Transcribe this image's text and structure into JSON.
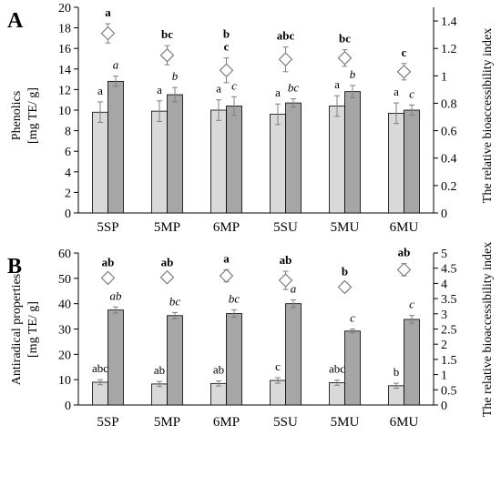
{
  "colors": {
    "light_bar": "#d9d9d9",
    "dark_bar": "#a6a6a6",
    "stroke": "#000000",
    "marker_stroke": "#7f7f7f",
    "error_bar": "#7f7f7f"
  },
  "chart_data": [
    {
      "type": "bar",
      "panel_label": "A",
      "categories": [
        "5SP",
        "5MP",
        "6MP",
        "5SU",
        "5MU",
        "6MU"
      ],
      "ylabel": [
        "Phenolics",
        "[mg TE/ g]"
      ],
      "ylim": [
        0,
        20
      ],
      "yticks": [
        0,
        2,
        4,
        6,
        8,
        10,
        12,
        14,
        16,
        18,
        20
      ],
      "y2label": "The relative bioaccessibility index",
      "y2lim": [
        0,
        1.5
      ],
      "y2ticks": [
        "0",
        "0.2",
        "0.4",
        "0.6",
        "0.8",
        "1",
        "1.2",
        "1.4"
      ],
      "series": [
        {
          "style": "light-bar",
          "values": [
            9.8,
            9.9,
            10.0,
            9.6,
            10.4,
            9.7
          ],
          "errors": [
            1.0,
            1.0,
            1.0,
            1.0,
            1.0,
            1.0
          ],
          "labels": [
            "a",
            "a",
            "a",
            "a",
            "a",
            "a"
          ],
          "label_style": "normal"
        },
        {
          "style": "dark-bar",
          "values": [
            12.8,
            11.5,
            10.4,
            10.7,
            11.8,
            10.0
          ],
          "errors": [
            0.5,
            0.7,
            0.9,
            0.4,
            0.6,
            0.5
          ],
          "labels": [
            "a",
            "b",
            "c",
            "bc",
            "b",
            "c"
          ],
          "label_style": "italic"
        },
        {
          "style": "diamond",
          "axis": "secondary",
          "values": [
            1.31,
            1.15,
            1.04,
            1.12,
            1.13,
            1.03
          ],
          "errors": [
            0.07,
            0.07,
            0.09,
            0.09,
            0.06,
            0.06
          ],
          "labels": [
            "a",
            "bc",
            "b\nc",
            "abc",
            "bc",
            "c"
          ],
          "label_style": "bold"
        }
      ]
    },
    {
      "type": "bar",
      "panel_label": "B",
      "categories": [
        "5SP",
        "5MP",
        "6MP",
        "5SU",
        "5MU",
        "6MU"
      ],
      "ylabel": [
        "Antiradical properties",
        "[mg TE/ g]"
      ],
      "ylim": [
        0,
        60
      ],
      "yticks": [
        0,
        10,
        20,
        30,
        40,
        50,
        60
      ],
      "y2label": "The relative bioaccessibility index",
      "y2lim": [
        0,
        5
      ],
      "y2ticks": [
        "0",
        "0.5",
        "1",
        "1.5",
        "2",
        "2.5",
        "3",
        "3.5",
        "4",
        "4.5",
        "5"
      ],
      "series": [
        {
          "style": "light-bar",
          "values": [
            9.0,
            8.3,
            8.5,
            9.7,
            8.8,
            7.6
          ],
          "errors": [
            1.0,
            1.0,
            1.0,
            1.1,
            1.0,
            1.0
          ],
          "labels": [
            "abc",
            "ab",
            "ab",
            "c",
            "abc",
            "b"
          ],
          "label_style": "normal"
        },
        {
          "style": "dark-bar",
          "values": [
            37.5,
            35.3,
            36.1,
            40.0,
            29.2,
            33.8
          ],
          "errors": [
            1.2,
            1.2,
            1.5,
            1.5,
            0.8,
            1.5
          ],
          "labels": [
            "ab",
            "bc",
            "bc",
            "a",
            "c",
            "c"
          ],
          "label_style": "italic"
        },
        {
          "style": "diamond",
          "axis": "secondary",
          "values": [
            4.18,
            4.2,
            4.25,
            4.1,
            3.88,
            4.45
          ],
          "errors": [
            0.15,
            0.12,
            0.2,
            0.3,
            0.15,
            0.2
          ],
          "labels": [
            "ab",
            "ab",
            "a",
            "ab",
            "b",
            "ab"
          ],
          "label_style": "bold"
        }
      ]
    }
  ]
}
